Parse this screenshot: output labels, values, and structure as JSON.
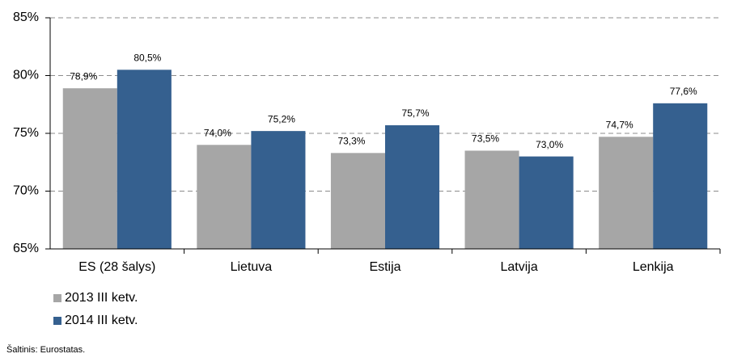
{
  "chart_data": {
    "type": "bar",
    "categories": [
      "ES (28 šalys)",
      "Lietuva",
      "Estija",
      "Latvija",
      "Lenkija"
    ],
    "series": [
      {
        "name": "2013 III ketv.",
        "color": "#a6a6a6",
        "values": [
          78.9,
          74.0,
          73.3,
          73.5,
          74.7
        ],
        "value_labels": [
          "78,9%",
          "74,0%",
          "73,3%",
          "73,5%",
          "74,7%"
        ]
      },
      {
        "name": "2014 III ketv.",
        "color": "#35608f",
        "values": [
          80.5,
          75.2,
          75.7,
          73.0,
          77.6
        ],
        "value_labels": [
          "80,5%",
          "75,2%",
          "75,7%",
          "73,0%",
          "77,6%"
        ]
      }
    ],
    "ylim": [
      65,
      85
    ],
    "yticks": [
      {
        "value": 65,
        "label": "65%"
      },
      {
        "value": 70,
        "label": "70%"
      },
      {
        "value": 75,
        "label": "75%"
      },
      {
        "value": 80,
        "label": "80%"
      },
      {
        "value": 85,
        "label": "85%"
      }
    ],
    "grid": true,
    "legend": "bottom-left",
    "source": "Šaltinis: Eurostatas."
  }
}
